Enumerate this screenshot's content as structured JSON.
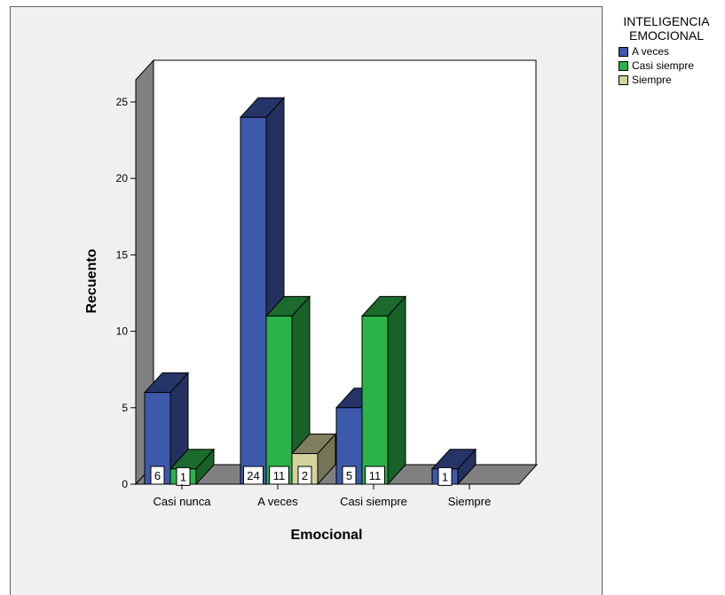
{
  "chart_data": {
    "type": "bar",
    "style": "3d-clustered",
    "title": "",
    "xlabel": "Emocional",
    "ylabel": "Recuento",
    "categories": [
      "Casi nunca",
      "A veces",
      "Casi siempre",
      "Siempre"
    ],
    "ylim": [
      0,
      25
    ],
    "yticks": [
      0,
      5,
      10,
      15,
      20,
      25
    ],
    "legend_title": "INTELIGENCIA EMOCIONAL",
    "legend_position": "top-right outside",
    "grid": false,
    "series": [
      {
        "name": "A veces",
        "color": "#3d59ab",
        "values": [
          6,
          24,
          5,
          1
        ]
      },
      {
        "name": "Casi siempre",
        "color": "#2bb34a",
        "values": [
          1,
          11,
          11,
          null
        ]
      },
      {
        "name": "Siempre",
        "color": "#d6d29c",
        "values": [
          null,
          2,
          null,
          null
        ]
      }
    ]
  }
}
